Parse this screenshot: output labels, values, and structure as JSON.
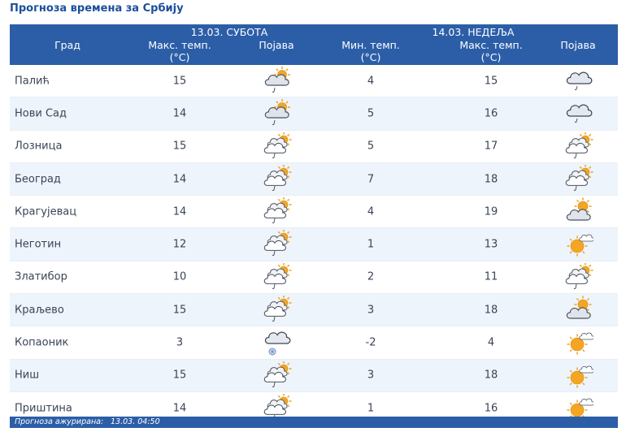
{
  "title": "Прогноза времена за Србију",
  "header": {
    "day1": "13.03. СУБОТА",
    "day2": "14.03. НЕДЕЉА",
    "city": "Град",
    "max_temp_1": "Макс. темп.",
    "unit_1": "(°C)",
    "phenomenon_1": "Појава",
    "min_temp_2": "Мин. темп.",
    "unit_2": "(°C)",
    "max_temp_2": "Макс. темп.",
    "unit_3": "(°C)",
    "phenomenon_2": "Појава"
  },
  "rows": [
    {
      "city": "Палић",
      "max1": "15",
      "icon1": "partly-cloudy-sun-drizzle-icon",
      "min2": "4",
      "max2": "15",
      "icon2": "cloud-drizzle-icon"
    },
    {
      "city": "Нови Сад",
      "max1": "14",
      "icon1": "partly-cloudy-sun-drizzle-icon",
      "min2": "5",
      "max2": "16",
      "icon2": "cloud-drizzle-icon"
    },
    {
      "city": "Лозница",
      "max1": "15",
      "icon1": "clouds-sun-drizzle-icon",
      "min2": "5",
      "max2": "17",
      "icon2": "clouds-sun-drizzle-icon"
    },
    {
      "city": "Београд",
      "max1": "14",
      "icon1": "clouds-sun-drizzle-icon",
      "min2": "7",
      "max2": "18",
      "icon2": "clouds-sun-drizzle-icon"
    },
    {
      "city": "Крагујевац",
      "max1": "14",
      "icon1": "clouds-sun-drizzle-icon",
      "min2": "4",
      "max2": "19",
      "icon2": "partly-cloudy-sun-icon"
    },
    {
      "city": "Неготин",
      "max1": "12",
      "icon1": "clouds-sun-drizzle-icon",
      "min2": "1",
      "max2": "13",
      "icon2": "sun-cloud-icon"
    },
    {
      "city": "Златибор",
      "max1": "10",
      "icon1": "clouds-sun-drizzle-icon",
      "min2": "2",
      "max2": "11",
      "icon2": "clouds-sun-drizzle-icon"
    },
    {
      "city": "Краљево",
      "max1": "15",
      "icon1": "clouds-sun-drizzle-icon",
      "min2": "3",
      "max2": "18",
      "icon2": "partly-cloudy-sun-icon"
    },
    {
      "city": "Копаоник",
      "max1": "3",
      "icon1": "cloud-snow-icon",
      "min2": "-2",
      "max2": "4",
      "icon2": "sun-cloud-icon"
    },
    {
      "city": "Ниш",
      "max1": "15",
      "icon1": "clouds-sun-drizzle-icon",
      "min2": "3",
      "max2": "18",
      "icon2": "sun-cloud-icon"
    },
    {
      "city": "Приштина",
      "max1": "14",
      "icon1": "clouds-sun-drizzle-icon",
      "min2": "1",
      "max2": "16",
      "icon2": "sun-cloud-icon"
    }
  ],
  "footer": {
    "label": "Прогноза ажурирана:",
    "value": "13.03. 04:50"
  },
  "colors": {
    "header_bg": "#2c5ea8",
    "title": "#1b4f9c",
    "row_alt": "#eef4fb",
    "sun": "#f4a623"
  }
}
